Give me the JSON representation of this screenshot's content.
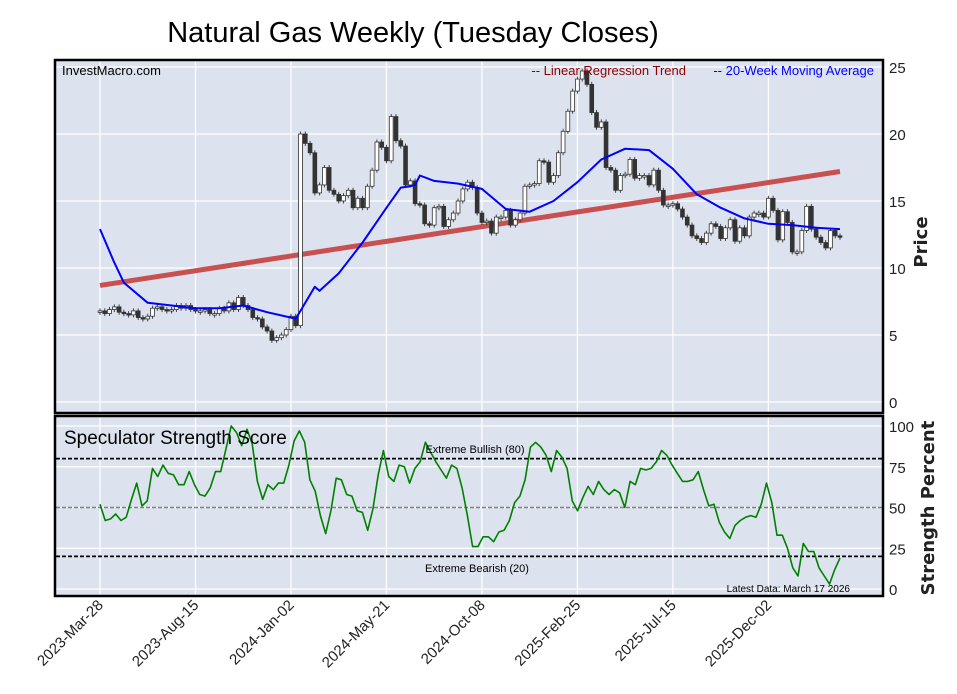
{
  "chart_data": [
    {
      "type": "candlestick",
      "title": "Natural Gas Weekly (Tuesday Closes)",
      "watermark": "InvestMacro.com",
      "ylabel": "Price",
      "ylim": [
        0,
        25
      ],
      "yticks": [
        "0",
        "5",
        "10",
        "15",
        "20",
        "25"
      ],
      "ytick_values": [
        0,
        5,
        10,
        15,
        20,
        25
      ],
      "grid": true,
      "legend_position": "top-right",
      "legend": [
        {
          "label": "-- Linear Regression Trend",
          "color": "#8b0000"
        },
        {
          "label": "-- 20-Week Moving Average",
          "color": "#0000ff"
        }
      ],
      "x_start": "2023-03-28",
      "x_end": "2026-03-17",
      "closes": [
        6.8,
        6.6,
        6.9,
        7.1,
        6.7,
        6.6,
        6.5,
        6.8,
        6.3,
        6.2,
        6.4,
        7.0,
        7.1,
        6.9,
        6.8,
        6.9,
        7.2,
        7.0,
        7.2,
        6.9,
        6.8,
        6.8,
        6.9,
        6.6,
        6.6,
        7.0,
        6.8,
        7.4,
        6.9,
        7.8,
        7.2,
        6.9,
        6.3,
        6.2,
        5.6,
        5.3,
        4.6,
        4.8,
        5.0,
        5.4,
        6.4,
        5.7,
        20.0,
        19.3,
        18.6,
        15.6,
        16.2,
        17.5,
        15.8,
        15.5,
        15.0,
        15.4,
        15.8,
        14.5,
        15.2,
        14.5,
        16.1,
        17.3,
        19.4,
        19.0,
        18.0,
        21.3,
        19.5,
        19.1,
        16.2,
        16.5,
        14.8,
        14.7,
        13.3,
        13.2,
        14.5,
        14.6,
        13.1,
        13.6,
        14.1,
        15.0,
        15.9,
        16.4,
        16.0,
        14.1,
        13.4,
        13.5,
        12.6,
        13.8,
        13.8,
        14.3,
        13.2,
        13.6,
        14.1,
        16.1,
        16.2,
        16.3,
        18.0,
        17.9,
        16.4,
        16.9,
        18.6,
        20.2,
        21.7,
        23.2,
        24.1,
        24.7,
        23.7,
        21.6,
        20.5,
        20.9,
        17.5,
        17.3,
        15.8,
        16.9,
        17.0,
        18.1,
        16.7,
        16.9,
        16.9,
        16.2,
        17.3,
        15.8,
        14.7,
        14.7,
        14.8,
        14.4,
        13.8,
        13.2,
        12.4,
        12.2,
        11.9,
        12.6,
        13.3,
        13.1,
        12.2,
        13.0,
        13.6,
        12.0,
        13.0,
        12.4,
        13.8,
        14.1,
        14.1,
        13.8,
        15.2,
        14.3,
        12.1,
        14.2,
        13.4,
        11.2,
        11.2,
        12.8,
        14.6,
        12.9,
        12.3,
        11.9,
        11.5,
        12.8,
        12.4,
        12.3
      ],
      "moving_average_20w": [
        [
          "2023-03-28",
          12.9
        ],
        [
          "2023-04-18",
          10.4
        ],
        [
          "2023-05-02",
          8.9
        ],
        [
          "2023-06-06",
          7.4
        ],
        [
          "2023-07-11",
          7.2
        ],
        [
          "2023-08-15",
          7.0
        ],
        [
          "2023-09-19",
          7.0
        ],
        [
          "2023-10-24",
          7.2
        ],
        [
          "2023-11-28",
          6.7
        ],
        [
          "2024-01-02",
          6.3
        ],
        [
          "2024-01-09",
          6.2
        ],
        [
          "2024-02-06",
          8.6
        ],
        [
          "2024-02-13",
          8.3
        ],
        [
          "2024-03-12",
          9.6
        ],
        [
          "2024-04-16",
          11.9
        ],
        [
          "2024-05-21",
          14.5
        ],
        [
          "2024-06-11",
          16.0
        ],
        [
          "2024-06-25",
          16.1
        ],
        [
          "2024-07-02",
          16.2
        ],
        [
          "2024-07-09",
          16.9
        ],
        [
          "2024-07-30",
          16.5
        ],
        [
          "2024-09-03",
          16.3
        ],
        [
          "2024-10-08",
          15.9
        ],
        [
          "2024-11-12",
          14.4
        ],
        [
          "2024-12-17",
          14.2
        ],
        [
          "2025-01-21",
          15.0
        ],
        [
          "2025-02-25",
          16.4
        ],
        [
          "2025-04-01",
          18.1
        ],
        [
          "2025-05-06",
          18.9
        ],
        [
          "2025-06-10",
          18.8
        ],
        [
          "2025-07-15",
          17.4
        ],
        [
          "2025-08-19",
          15.5
        ],
        [
          "2025-09-23",
          14.5
        ],
        [
          "2025-10-28",
          13.7
        ],
        [
          "2025-12-02",
          13.3
        ],
        [
          "2026-01-06",
          13.2
        ],
        [
          "2026-02-10",
          13.0
        ],
        [
          "2026-03-17",
          12.9
        ]
      ],
      "regression_trend": [
        [
          "2023-03-28",
          8.7
        ],
        [
          "2026-03-17",
          17.2
        ]
      ],
      "colors": {
        "up": "#ffffff",
        "down": "#333333",
        "ma": "#0000ff",
        "trend": "#c85050",
        "background": "#dde3ee"
      }
    },
    {
      "type": "line",
      "title": "Speculator Strength Score",
      "ylabel": "Strength Percent",
      "ylim": [
        0,
        100
      ],
      "yticks": [
        "0",
        "25",
        "50",
        "75",
        "100"
      ],
      "ytick_values": [
        0,
        25,
        50,
        75,
        100
      ],
      "x_start": "2023-03-28",
      "x_end": "2026-03-17",
      "xticks": [
        "2023-Mar-28",
        "2023-Aug-15",
        "2024-Jan-02",
        "2024-May-21",
        "2024-Oct-08",
        "2025-Feb-25",
        "2025-Jul-15",
        "2025-Dec-02"
      ],
      "xtick_dates": [
        "2023-03-28",
        "2023-08-15",
        "2024-01-02",
        "2024-05-21",
        "2024-10-08",
        "2025-02-25",
        "2025-07-15",
        "2025-12-02"
      ],
      "values": [
        52,
        42,
        43,
        46,
        42,
        44,
        55,
        65,
        51,
        54,
        74,
        69,
        76,
        71,
        70,
        64,
        64,
        72,
        64,
        58,
        57,
        62,
        72,
        72,
        86,
        100,
        96,
        88,
        98,
        89,
        66,
        55,
        64,
        61,
        65,
        65,
        76,
        91,
        97,
        90,
        67,
        60,
        45,
        34,
        48,
        68,
        67,
        58,
        57,
        48,
        47,
        36,
        49,
        70,
        85,
        69,
        66,
        76,
        75,
        65,
        74,
        78,
        90,
        84,
        78,
        73,
        68,
        76,
        74,
        62,
        45,
        26,
        26,
        32,
        32,
        29,
        35,
        36,
        42,
        53,
        57,
        67,
        87,
        90,
        87,
        82,
        72,
        85,
        81,
        74,
        54,
        48,
        56,
        63,
        58,
        66,
        61,
        58,
        61,
        59,
        50,
        66,
        64,
        74,
        73,
        74,
        78,
        85,
        82,
        76,
        71,
        66,
        66,
        67,
        72,
        61,
        51,
        52,
        41,
        35,
        31,
        39,
        42,
        44,
        45,
        44,
        52,
        65,
        53,
        33,
        33,
        25,
        13,
        8,
        28,
        23,
        23,
        13,
        8,
        3,
        12,
        19
      ],
      "color": "#008000",
      "reference_lines": [
        {
          "value": 80,
          "label": "Extreme Bullish (80)",
          "style": "dashed",
          "color": "#000000"
        },
        {
          "value": 50,
          "label": "",
          "style": "dashed",
          "color": "#808080"
        },
        {
          "value": 20,
          "label": "Extreme Bearish (20)",
          "style": "dashed",
          "color": "#000000"
        }
      ],
      "annotation": "Latest Data: March 17 2026"
    }
  ]
}
